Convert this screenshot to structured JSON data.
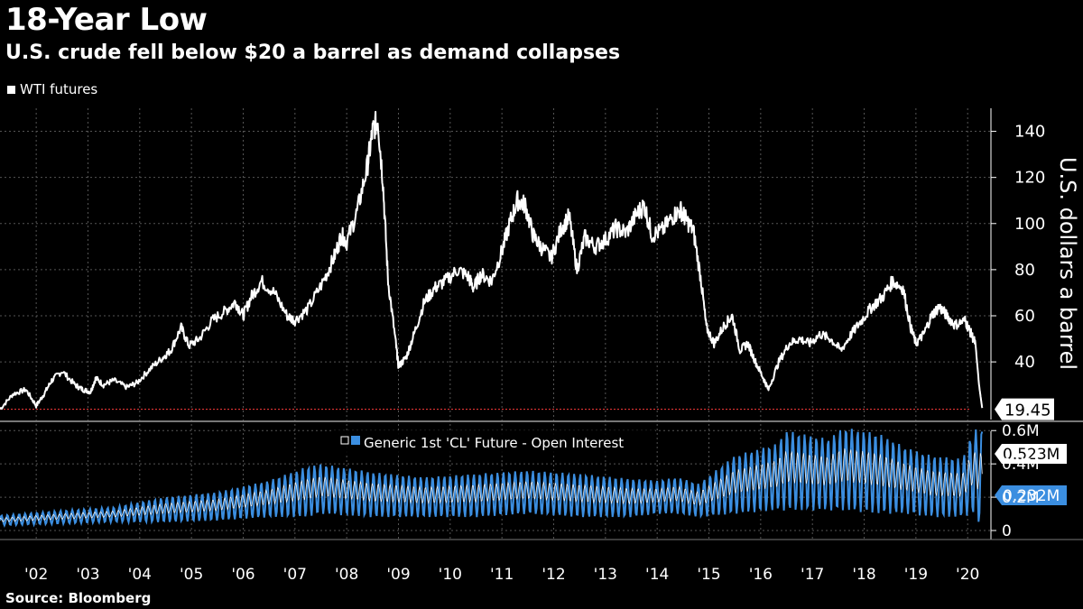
{
  "header": {
    "title": "18-Year Low",
    "subtitle": "U.S. crude fell below $20 a barrel as demand collapses"
  },
  "footer": {
    "source": "Source: Bloomberg"
  },
  "chart_data": [
    {
      "type": "line",
      "title": "",
      "legend": "WTI futures",
      "legend_position": "top-left",
      "ylabel": "U.S. dollars a barrel",
      "ylim": [
        15,
        150
      ],
      "yticks": [
        40,
        60,
        80,
        100,
        120,
        140
      ],
      "grid": true,
      "last_value_label": "19.45",
      "reference_line": 19.45,
      "color": "#ffffff",
      "series": [
        {
          "x": [
            2001.3,
            2001.55,
            2001.8,
            2002.0,
            2002.15,
            2002.3,
            2002.5,
            2002.75,
            2002.9,
            2003.05,
            2003.15,
            2003.3,
            2003.5,
            2003.75,
            2003.95,
            2004.2,
            2004.45,
            2004.6,
            2004.8,
            2004.95,
            2005.15,
            2005.4,
            2005.65,
            2005.85,
            2006.0,
            2006.15,
            2006.35,
            2006.6,
            2006.85,
            2007.0,
            2007.25,
            2007.55,
            2007.75,
            2007.9,
            2008.0,
            2008.2,
            2008.4,
            2008.5,
            2008.6,
            2008.7,
            2008.8,
            2008.95,
            2009.0,
            2009.15,
            2009.3,
            2009.5,
            2009.7,
            2009.9,
            2010.15,
            2010.35,
            2010.45,
            2010.6,
            2010.8,
            2011.0,
            2011.15,
            2011.3,
            2011.45,
            2011.6,
            2011.75,
            2011.95,
            2012.15,
            2012.3,
            2012.45,
            2012.6,
            2012.8,
            2013.0,
            2013.2,
            2013.4,
            2013.6,
            2013.75,
            2013.9,
            2014.1,
            2014.3,
            2014.45,
            2014.55,
            2014.7,
            2014.85,
            2014.95,
            2015.1,
            2015.3,
            2015.45,
            2015.6,
            2015.75,
            2015.9,
            2016.05,
            2016.15,
            2016.35,
            2016.55,
            2016.75,
            2016.95,
            2017.15,
            2017.35,
            2017.55,
            2017.75,
            2017.95,
            2018.15,
            2018.35,
            2018.55,
            2018.75,
            2018.9,
            2019.0,
            2019.15,
            2019.3,
            2019.45,
            2019.6,
            2019.75,
            2019.95,
            2020.05,
            2020.15,
            2020.22,
            2020.28
          ],
          "values": [
            19.5,
            26,
            28,
            21,
            26,
            32,
            36,
            30,
            28,
            27,
            33,
            30,
            32,
            29,
            31,
            37,
            42,
            45,
            55,
            47,
            50,
            58,
            62,
            66,
            60,
            68,
            75,
            70,
            60,
            58,
            63,
            75,
            85,
            95,
            92,
            105,
            125,
            140,
            145,
            118,
            75,
            48,
            38,
            42,
            52,
            66,
            72,
            75,
            80,
            77,
            72,
            78,
            75,
            88,
            100,
            110,
            108,
            95,
            90,
            85,
            98,
            103,
            80,
            94,
            90,
            93,
            98,
            96,
            104,
            108,
            95,
            97,
            103,
            106,
            102,
            97,
            75,
            55,
            48,
            56,
            60,
            45,
            48,
            40,
            33,
            28,
            40,
            48,
            50,
            48,
            52,
            50,
            45,
            52,
            58,
            64,
            68,
            75,
            72,
            55,
            48,
            52,
            60,
            64,
            60,
            56,
            58,
            53,
            48,
            30,
            20
          ]
        }
      ]
    },
    {
      "type": "line",
      "title": "",
      "legend": "Generic 1st 'CL' Future - Open Interest",
      "ylim": [
        0,
        0.65
      ],
      "yticks": [
        0,
        0.2,
        0.4,
        0.6
      ],
      "ytick_labels": [
        "0",
        "0.2M",
        "0.4M",
        "0.6M"
      ],
      "last_value_labels": [
        "0.523M",
        "0.232M"
      ],
      "color": "#3b8ee0",
      "series": [
        {
          "name": "Generic 1st 'CL' Future - Open Interest",
          "x": [
            2001.3,
            2002.5,
            2003.5,
            2004.5,
            2005.5,
            2006.5,
            2007.2,
            2007.5,
            2008.5,
            2009.5,
            2010.5,
            2011.5,
            2012.5,
            2013.5,
            2014.0,
            2014.4,
            2014.8,
            2015.5,
            2016.3,
            2016.5,
            2017.3,
            2017.6,
            2018.3,
            2018.8,
            2019.3,
            2019.9,
            2020.1,
            2020.28
          ],
          "upper": [
            0.09,
            0.12,
            0.14,
            0.2,
            0.23,
            0.3,
            0.38,
            0.4,
            0.35,
            0.32,
            0.34,
            0.36,
            0.34,
            0.31,
            0.3,
            0.32,
            0.28,
            0.45,
            0.52,
            0.6,
            0.55,
            0.62,
            0.58,
            0.5,
            0.45,
            0.43,
            0.6,
            0.62
          ],
          "lower": [
            0.03,
            0.04,
            0.05,
            0.05,
            0.06,
            0.08,
            0.08,
            0.1,
            0.08,
            0.08,
            0.08,
            0.1,
            0.08,
            0.08,
            0.1,
            0.1,
            0.08,
            0.1,
            0.12,
            0.12,
            0.12,
            0.12,
            0.1,
            0.1,
            0.08,
            0.08,
            0.1,
            0.01
          ]
        }
      ]
    }
  ],
  "x_axis": {
    "ticks": [
      2002,
      2003,
      2004,
      2005,
      2006,
      2007,
      2008,
      2009,
      2010,
      2011,
      2012,
      2013,
      2014,
      2015,
      2016,
      2017,
      2018,
      2019,
      2020
    ],
    "labels": [
      "'02",
      "'03",
      "'04",
      "'05",
      "'06",
      "'07",
      "'08",
      "'09",
      "'10",
      "'11",
      "'12",
      "'13",
      "'14",
      "'15",
      "'16",
      "'17",
      "'18",
      "'19",
      "'20"
    ]
  },
  "colors": {
    "background": "#000000",
    "grid": "#555555",
    "reference": "#ff3b3b",
    "oi": "#3b8ee0"
  }
}
